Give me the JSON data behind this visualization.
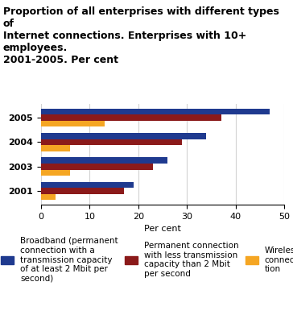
{
  "title": "Proportion of all enterprises with different types of\nInternet connections. Enterprises with 10+ employees.\n2001-2005. Per cent",
  "years": [
    "2001",
    "2003",
    "2004",
    "2005"
  ],
  "broadband": [
    19,
    26,
    34,
    47
  ],
  "permanent_less": [
    17,
    23,
    29,
    37
  ],
  "wireless": [
    3,
    6,
    6,
    13
  ],
  "colors": {
    "broadband": "#1F3A8F",
    "permanent_less": "#8B1A1A",
    "wireless": "#F5A623"
  },
  "xlabel": "Per cent",
  "xlim": [
    0,
    50
  ],
  "xticks": [
    0,
    10,
    20,
    30,
    40,
    50
  ],
  "legend_labels": {
    "broadband": "Broadband (permanent\nconnection with a\ntransmission capacity\nof at least 2 Mbit per\nsecond)",
    "permanent_less": "Permanent connection\nwith less transmission\ncapacity than 2 Mbit\nper second",
    "wireless": "Wireless\nconnec-\ntion"
  },
  "bar_height": 0.25,
  "title_fontsize": 9,
  "axis_fontsize": 8,
  "tick_fontsize": 8,
  "legend_fontsize": 7.5
}
